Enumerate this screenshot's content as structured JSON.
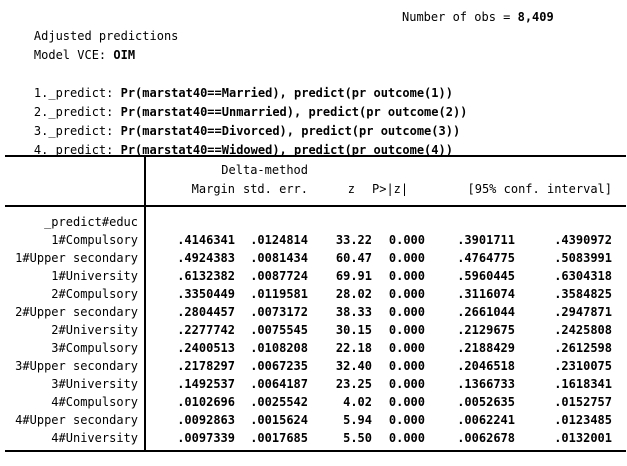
{
  "header": {
    "title": "Adjusted predictions",
    "obs_label": "Number of obs = ",
    "obs_value": "8,409",
    "model_label": "Model VCE: ",
    "model_value": "OIM"
  },
  "predict_lines": [
    {
      "prefix": "1._predict: ",
      "text": "Pr(marstat40==Married), predict(pr outcome(1))"
    },
    {
      "prefix": "2._predict: ",
      "text": "Pr(marstat40==Unmarried), predict(pr outcome(2))"
    },
    {
      "prefix": "3._predict: ",
      "text": "Pr(marstat40==Divorced), predict(pr outcome(3))"
    },
    {
      "prefix": "4._predict: ",
      "text": "Pr(marstat40==Widowed), predict(pr outcome(4))"
    }
  ],
  "table": {
    "delta_method_label": "Delta-method",
    "columns": {
      "margin": "Margin",
      "std_err": "std. err.",
      "z": "z",
      "p": "P>|z|",
      "ci": "[95% conf. interval]"
    },
    "group_label": "_predict#educ",
    "rows": [
      {
        "label": "1#Compulsory",
        "margin": ".4146341",
        "std_err": ".0124814",
        "z": "33.22",
        "p": "0.000",
        "ci_low": ".3901711",
        "ci_high": ".4390972"
      },
      {
        "label": "1#Upper secondary",
        "margin": ".4924383",
        "std_err": ".0081434",
        "z": "60.47",
        "p": "0.000",
        "ci_low": ".4764775",
        "ci_high": ".5083991"
      },
      {
        "label": "1#University",
        "margin": ".6132382",
        "std_err": ".0087724",
        "z": "69.91",
        "p": "0.000",
        "ci_low": ".5960445",
        "ci_high": ".6304318"
      },
      {
        "label": "2#Compulsory",
        "margin": ".3350449",
        "std_err": ".0119581",
        "z": "28.02",
        "p": "0.000",
        "ci_low": ".3116074",
        "ci_high": ".3584825"
      },
      {
        "label": "2#Upper secondary",
        "margin": ".2804457",
        "std_err": ".0073172",
        "z": "38.33",
        "p": "0.000",
        "ci_low": ".2661044",
        "ci_high": ".2947871"
      },
      {
        "label": "2#University",
        "margin": ".2277742",
        "std_err": ".0075545",
        "z": "30.15",
        "p": "0.000",
        "ci_low": ".2129675",
        "ci_high": ".2425808"
      },
      {
        "label": "3#Compulsory",
        "margin": ".2400513",
        "std_err": ".0108208",
        "z": "22.18",
        "p": "0.000",
        "ci_low": ".2188429",
        "ci_high": ".2612598"
      },
      {
        "label": "3#Upper secondary",
        "margin": ".2178297",
        "std_err": ".0067235",
        "z": "32.40",
        "p": "0.000",
        "ci_low": ".2046518",
        "ci_high": ".2310075"
      },
      {
        "label": "3#University",
        "margin": ".1492537",
        "std_err": ".0064187",
        "z": "23.25",
        "p": "0.000",
        "ci_low": ".1366733",
        "ci_high": ".1618341"
      },
      {
        "label": "4#Compulsory",
        "margin": ".0102696",
        "std_err": ".0025542",
        "z": "4.02",
        "p": "0.000",
        "ci_low": ".0052635",
        "ci_high": ".0152757"
      },
      {
        "label": "4#Upper secondary",
        "margin": ".0092863",
        "std_err": ".0015624",
        "z": "5.94",
        "p": "0.000",
        "ci_low": ".0062241",
        "ci_high": ".0123485"
      },
      {
        "label": "4#University",
        "margin": ".0097339",
        "std_err": ".0017685",
        "z": "5.50",
        "p": "0.000",
        "ci_low": ".0062678",
        "ci_high": ".0132001"
      }
    ]
  },
  "colors": {
    "text": "#000000",
    "background": "#ffffff",
    "rule": "#000000"
  }
}
